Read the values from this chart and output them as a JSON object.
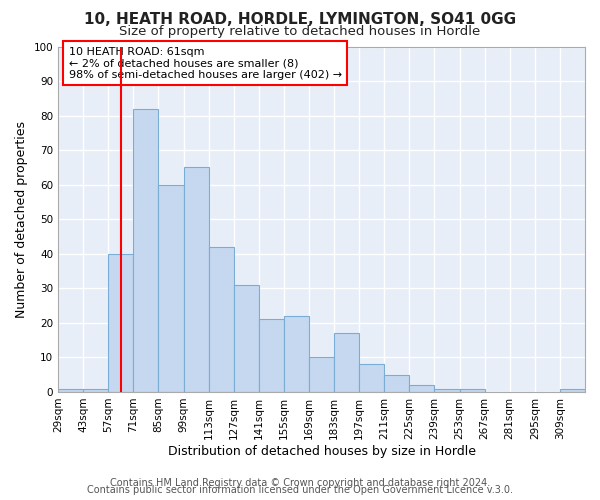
{
  "title1": "10, HEATH ROAD, HORDLE, LYMINGTON, SO41 0GG",
  "title2": "Size of property relative to detached houses in Hordle",
  "xlabel": "Distribution of detached houses by size in Hordle",
  "ylabel": "Number of detached properties",
  "bar_color": "#c5d8f0",
  "bar_edge_color": "#7aadd4",
  "background_color": "#e8eef8",
  "grid_color": "#ffffff",
  "bin_labels": [
    "29sqm",
    "43sqm",
    "57sqm",
    "71sqm",
    "85sqm",
    "99sqm",
    "113sqm",
    "127sqm",
    "141sqm",
    "155sqm",
    "169sqm",
    "183sqm",
    "197sqm",
    "211sqm",
    "225sqm",
    "239sqm",
    "253sqm",
    "267sqm",
    "281sqm",
    "295sqm",
    "309sqm"
  ],
  "bin_edges": [
    22,
    36,
    50,
    64,
    78,
    92,
    106,
    120,
    134,
    148,
    162,
    176,
    190,
    204,
    218,
    232,
    246,
    260,
    274,
    288,
    302,
    316
  ],
  "bar_heights": [
    1,
    1,
    40,
    82,
    60,
    65,
    42,
    31,
    21,
    22,
    10,
    17,
    8,
    5,
    2,
    1,
    1,
    0,
    0,
    0,
    1
  ],
  "red_line_x": 57,
  "ylim": [
    0,
    100
  ],
  "yticks": [
    0,
    10,
    20,
    30,
    40,
    50,
    60,
    70,
    80,
    90,
    100
  ],
  "annotation_title": "10 HEATH ROAD: 61sqm",
  "annotation_line1": "← 2% of detached houses are smaller (8)",
  "annotation_line2": "98% of semi-detached houses are larger (402) →",
  "footer1": "Contains HM Land Registry data © Crown copyright and database right 2024.",
  "footer2": "Contains public sector information licensed under the Open Government Licence v.3.0.",
  "title1_fontsize": 11,
  "title2_fontsize": 9.5,
  "axis_label_fontsize": 9,
  "tick_fontsize": 7.5,
  "annotation_fontsize": 8,
  "footer_fontsize": 7
}
